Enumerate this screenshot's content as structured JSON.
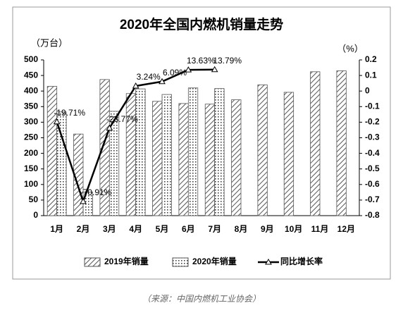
{
  "chart_data": {
    "type": "bar",
    "title": "2020年全国内燃机销量走势",
    "y_label": "（万台）",
    "y2_label": "（%）",
    "source": "（来源：中国内燃机工业协会）",
    "categories": [
      "1月",
      "2月",
      "3月",
      "4月",
      "5月",
      "6月",
      "7月",
      "8月",
      "9月",
      "10月",
      "11月",
      "12月"
    ],
    "series": [
      {
        "name": "2019年销量",
        "type": "bar",
        "pattern": "hatch",
        "color": "#555555",
        "values": [
          415,
          262,
          437,
          392,
          367,
          360,
          358,
          372,
          420,
          396,
          462,
          465
        ]
      },
      {
        "name": "2020年销量",
        "type": "bar",
        "pattern": "dots",
        "color": "#555555",
        "values": [
          333,
          76,
          335,
          407,
          389,
          410,
          408,
          null,
          null,
          null,
          null,
          null
        ]
      },
      {
        "name": "同比增长率",
        "type": "line",
        "axis": "y2",
        "color": "#000000",
        "values": [
          -0.1971,
          -0.7091,
          -0.2377,
          0.0324,
          0.0609,
          0.1363,
          0.1379,
          null,
          null,
          null,
          null,
          null
        ],
        "value_labels": [
          "-19.71%",
          "-70.91%",
          "-23.77%",
          "3.24%",
          "6.09%",
          "13.63%",
          "13.79%",
          null,
          null,
          null,
          null,
          null
        ]
      }
    ],
    "ylim": [
      0,
      500
    ],
    "yticks": [
      0,
      50,
      100,
      150,
      200,
      250,
      300,
      350,
      400,
      450,
      500
    ],
    "y2lim": [
      -0.8,
      0.2
    ],
    "y2ticks": [
      -0.8,
      -0.7,
      -0.6,
      -0.5,
      -0.4,
      -0.3,
      -0.2,
      -0.1,
      0,
      0.1,
      0.2
    ],
    "legend": "bottom",
    "grid": false
  }
}
